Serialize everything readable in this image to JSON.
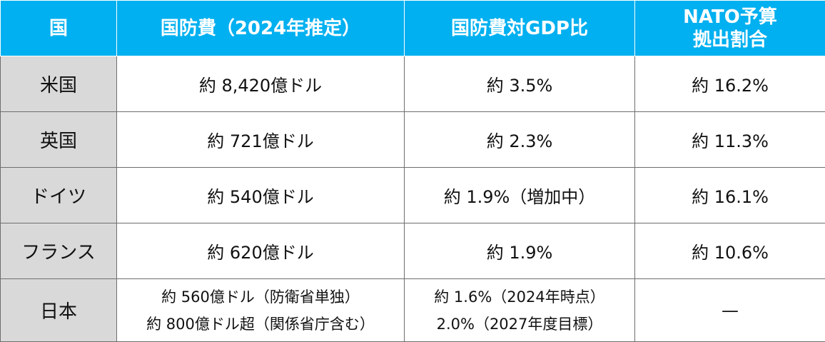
{
  "header": {
    "country": "国",
    "defense_budget": "国防費（2024年推定）",
    "gdp_ratio": "国防費対GDP比",
    "nato_share_line1": "NATO予算",
    "nato_share_line2": "拠出割合"
  },
  "rows": [
    {
      "country": "米国",
      "budget": "約 8,420億ドル",
      "gdp": "約 3.5%",
      "nato": "約 16.2%"
    },
    {
      "country": "英国",
      "budget": "約 721億ドル",
      "gdp": "約 2.3%",
      "nato": "約 11.3%"
    },
    {
      "country": "ドイツ",
      "budget": "約 540億ドル",
      "gdp": "約 1.9%（増加中）",
      "nato": "約 16.1%"
    },
    {
      "country": "フランス",
      "budget": "約 620億ドル",
      "gdp": "約 1.9%",
      "nato": "約 10.6%"
    },
    {
      "country": "日本",
      "budget_line1": "約 560億ドル（防衛省単独）",
      "budget_line2": "約 800億ドル超（関係省庁含む）",
      "gdp_line1": "約 1.6%（2024年時点）",
      "gdp_line2": "2.0%（2027年度目標）",
      "nato": "—"
    }
  ],
  "colors": {
    "header_bg": "#00b0f0",
    "header_text": "#ffffff",
    "country_cell_bg": "#d9d9d9",
    "border": "#6e6e6e"
  }
}
